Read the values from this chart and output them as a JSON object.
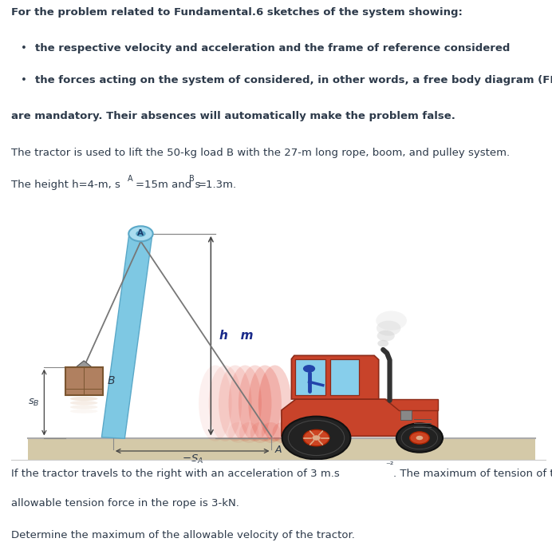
{
  "title_line1": "For the problem related to Fundamental.6 sketches of the system showing:",
  "bullet1": "the respective velocity and acceleration and the frame of reference considered",
  "bullet2": "the forces acting on the system of considered, in other words, a free body diagram (FBD)",
  "mandatory_text": "are mandatory. Their absences will automatically make the problem false.",
  "problem_text1": "The tractor is used to lift the 50-kg load B with the 27-m long rope, boom, and pulley system.",
  "problem_text2_pre": "The height h=4-m, s",
  "problem_text2_A": "A",
  "problem_text2_mid": "=15m and s",
  "problem_text2_B": "B",
  "problem_text2_post": "=1.3m.",
  "bottom_text1": "If the tractor travels to the right with an acceleration of 3 m.s",
  "bottom_text1b": "⁻²",
  "bottom_text1c": ". The maximum of tension of the",
  "bottom_text2": "allowable tension force in the rope is 3-kN.",
  "bottom_text3": "Determine the maximum of the allowable velocity of the tractor.",
  "bg_color": "#ffffff",
  "text_color": "#2d3a4a",
  "boom_color": "#7ec8e3",
  "boom_edge_color": "#5aa8c8",
  "ground_color": "#d4c9a8",
  "ground_line_color": "#aaaaaa",
  "rope_color": "#777777",
  "box_face": "#b08060",
  "box_edge": "#7a5530",
  "tractor_red": "#c8432a",
  "tractor_dark": "#8c2a18",
  "tractor_window": "#87ceeb",
  "wheel_dark": "#222222",
  "wheel_hub": "#cc4422",
  "exhaust_color": "#333333",
  "smoke_color": "#cccccc",
  "dim_arrow_color": "#444444",
  "h_text_color": "#1a2a8a",
  "dim_line_color": "#888888"
}
